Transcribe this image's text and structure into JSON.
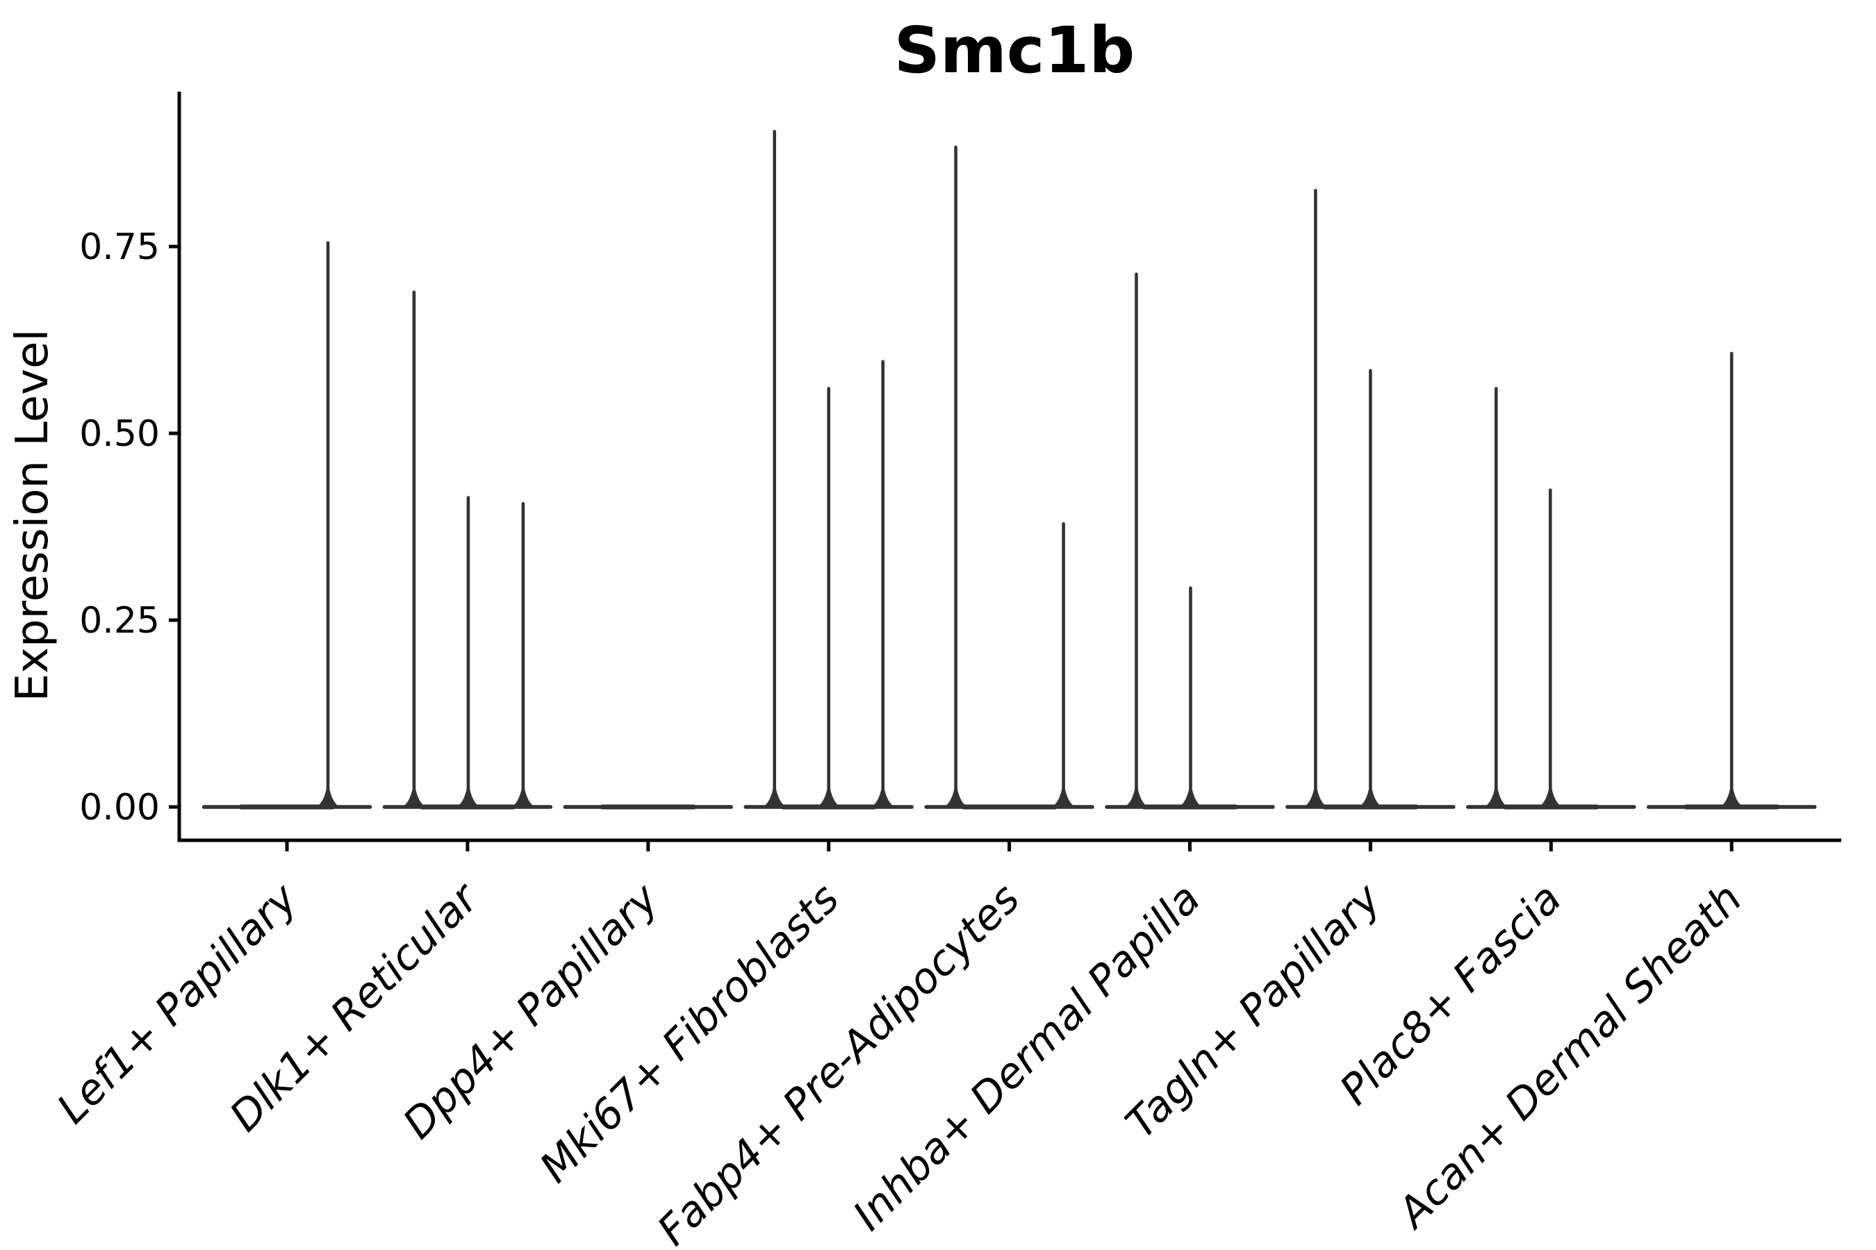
{
  "figure": {
    "background": "#ffffff"
  },
  "chart_data": {
    "type": "violin",
    "title": "Smc1b",
    "ylabel": "Expression Level",
    "xlabel": "",
    "ylim": [
      0,
      0.955
    ],
    "grid": false,
    "legend": null,
    "yticks": [
      {
        "value": 0.0,
        "label": "0.00"
      },
      {
        "value": 0.25,
        "label": "0.25"
      },
      {
        "value": 0.5,
        "label": "0.50"
      },
      {
        "value": 0.75,
        "label": "0.75"
      }
    ],
    "colors": {
      "violin": "#333333",
      "axis": "#000000",
      "text": "#000000",
      "background": "#ffffff"
    },
    "note": "Violin plot of Smc1b expression; each category shows split sub-violins collapsed at 0 with thin density spikes reaching the max expression value.",
    "categories": [
      {
        "label": "Lef1+ Papillary",
        "values": [
          0.755
        ],
        "violins": [
          {
            "dx": 59,
            "max": 0.755
          }
        ]
      },
      {
        "label": "Dlk1+ Reticular",
        "values": [
          0.689,
          0.414,
          0.406
        ],
        "violins": [
          {
            "dx": -77,
            "max": 0.689
          },
          {
            "dx": 1,
            "max": 0.414
          },
          {
            "dx": 80,
            "max": 0.406
          }
        ]
      },
      {
        "label": "Dpp4+ Papillary",
        "values": [],
        "violins": []
      },
      {
        "label": "Mki67+ Fibroblasts",
        "values": [
          0.904,
          0.56,
          0.596
        ],
        "violins": [
          {
            "dx": -78,
            "max": 0.904
          },
          {
            "dx": 0,
            "max": 0.56
          },
          {
            "dx": 78,
            "max": 0.596
          }
        ]
      },
      {
        "label": "Fabp4+ Pre-Adipocytes",
        "values": [
          0.883,
          0.379
        ],
        "violins": [
          {
            "dx": -77,
            "max": 0.883
          },
          {
            "dx": 78,
            "max": 0.379
          }
        ]
      },
      {
        "label": "Inhba+ Dermal Papilla",
        "values": [
          0.713,
          0.293
        ],
        "violins": [
          {
            "dx": -77,
            "max": 0.713
          },
          {
            "dx": 1,
            "max": 0.293
          }
        ]
      },
      {
        "label": "Tagln+ Papillary",
        "values": [
          0.825,
          0.584
        ],
        "violins": [
          {
            "dx": -79,
            "max": 0.825
          },
          {
            "dx": 0,
            "max": 0.584
          }
        ]
      },
      {
        "label": "Plac8+ Fascia",
        "values": [
          0.56,
          0.424
        ],
        "violins": [
          {
            "dx": -79,
            "max": 0.56
          },
          {
            "dx": -1,
            "max": 0.424
          }
        ]
      },
      {
        "label": "Acan+ Dermal Sheath",
        "values": [
          0.607
        ],
        "violins": [
          {
            "dx": 0,
            "max": 0.607
          }
        ]
      }
    ]
  }
}
